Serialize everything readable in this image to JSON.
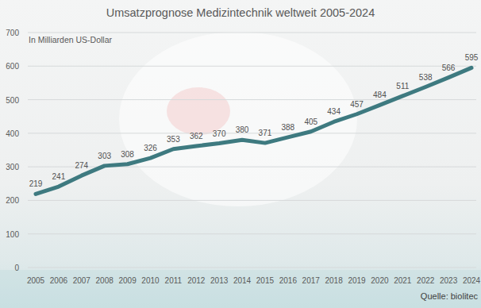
{
  "chart_data": {
    "type": "line",
    "title": "Umsatzprognose Medizintechnik weltweit 2005-2024",
    "subtitle": "In Milliarden US-Dollar",
    "annotations": [
      "Quelle: biolitec"
    ],
    "categories": [
      "2005",
      "2006",
      "2007",
      "2008",
      "2009",
      "2010",
      "2011",
      "2012",
      "2013",
      "2014",
      "2015",
      "2016",
      "2017",
      "2018",
      "2019",
      "2020",
      "2021",
      "2022",
      "2023",
      "2024"
    ],
    "values": [
      219,
      241,
      274,
      303,
      308,
      326,
      353,
      362,
      370,
      380,
      371,
      388,
      405,
      434,
      457,
      484,
      511,
      538,
      566,
      595
    ],
    "color": "#3e7a80",
    "ylim": [
      0,
      700
    ],
    "yticks": [
      0,
      100,
      200,
      300,
      400,
      500,
      600,
      700
    ],
    "grid": true,
    "data_labels": true
  }
}
